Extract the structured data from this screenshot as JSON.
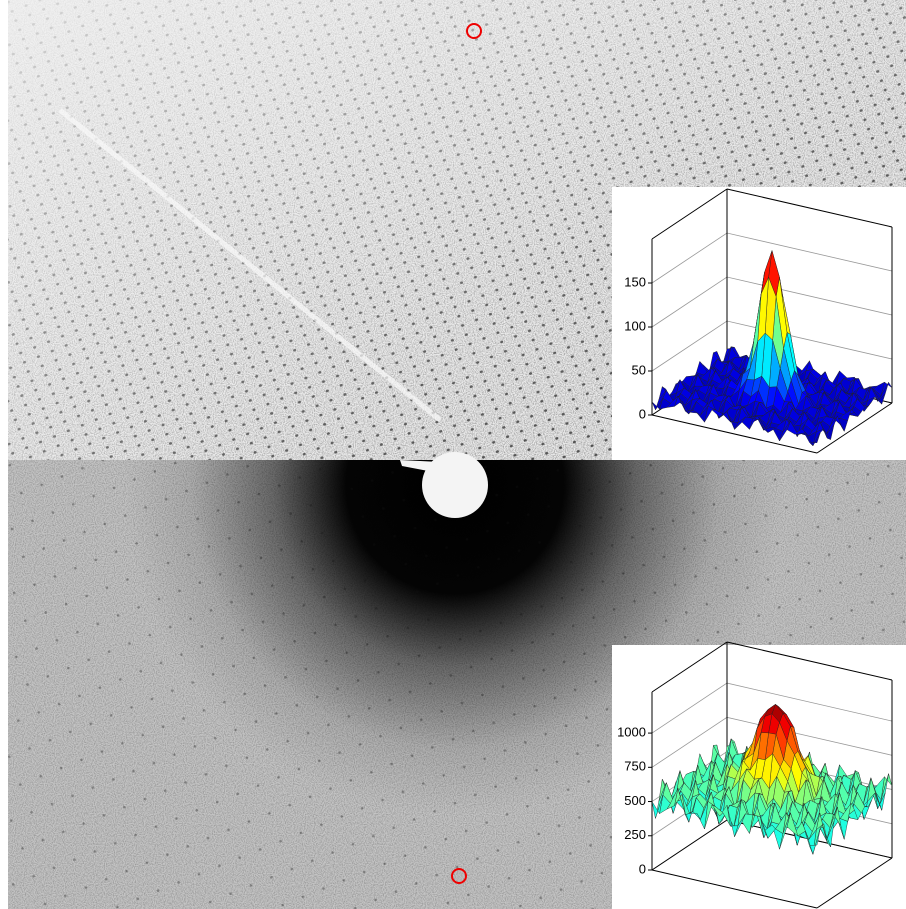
{
  "chart_data": [
    {
      "type": "surface",
      "zlim": [
        0,
        200
      ],
      "zticks": [
        0,
        50,
        100,
        150
      ],
      "peak": 180,
      "base": 15
    },
    {
      "type": "surface",
      "zlim": [
        0,
        1300
      ],
      "zticks": [
        0,
        250,
        500,
        750,
        1000
      ],
      "peak": 1150,
      "base": 500
    }
  ]
}
